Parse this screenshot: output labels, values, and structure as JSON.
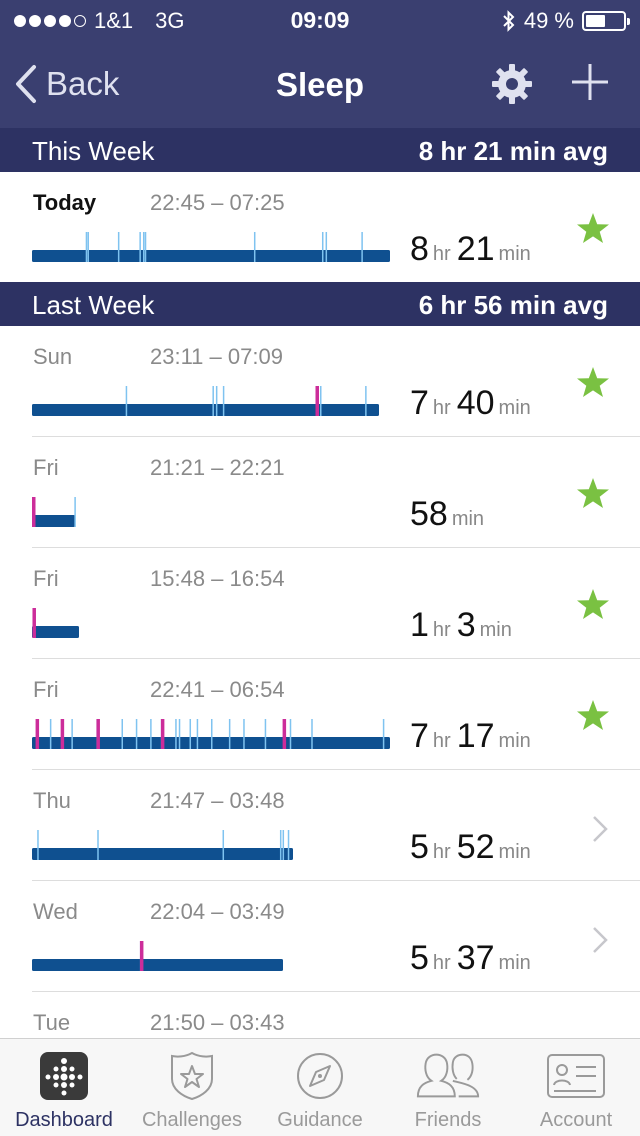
{
  "status": {
    "carrier": "1&1",
    "network": "3G",
    "time": "09:09",
    "battery": "49 %",
    "battery_level": 0.49,
    "signal_bars": 4
  },
  "nav": {
    "back_label": "Back",
    "title": "Sleep"
  },
  "sections": [
    {
      "label": "This Week",
      "avg": "8 hr 21 min avg"
    },
    {
      "label": "Last Week",
      "avg": "6 hr 56 min avg"
    }
  ],
  "entries": [
    {
      "day": "Today",
      "range": "22:45 – 07:25",
      "hr": "8",
      "hr_unit": "hr",
      "min": "21",
      "min_unit": "min",
      "status": "star",
      "bar_fraction": 1.0,
      "highlight_day": true
    },
    {
      "day": "Sun",
      "range": "23:11 – 07:09",
      "hr": "7",
      "hr_unit": "hr",
      "min": "40",
      "min_unit": "min",
      "status": "star",
      "bar_fraction": 0.97
    },
    {
      "day": "Fri",
      "range": "21:21 – 22:21",
      "hr": "",
      "hr_unit": "",
      "min": "58",
      "min_unit": "min",
      "status": "star",
      "bar_fraction": 0.12
    },
    {
      "day": "Fri",
      "range": "15:48 – 16:54",
      "hr": "1",
      "hr_unit": "hr",
      "min": "3",
      "min_unit": "min",
      "status": "star",
      "bar_fraction": 0.13
    },
    {
      "day": "Fri",
      "range": "22:41 – 06:54",
      "hr": "7",
      "hr_unit": "hr",
      "min": "17",
      "min_unit": "min",
      "status": "star",
      "bar_fraction": 1.0
    },
    {
      "day": "Thu",
      "range": "21:47 – 03:48",
      "hr": "5",
      "hr_unit": "hr",
      "min": "52",
      "min_unit": "min",
      "status": "chevron",
      "bar_fraction": 0.73
    },
    {
      "day": "Wed",
      "range": "22:04 – 03:49",
      "hr": "5",
      "hr_unit": "hr",
      "min": "37",
      "min_unit": "min",
      "status": "chevron",
      "bar_fraction": 0.7
    },
    {
      "day": "Tue",
      "range": "21:50 – 03:43",
      "hr": "",
      "hr_unit": "",
      "min": "",
      "min_unit": "",
      "status": "chevron",
      "bar_fraction": 0
    }
  ],
  "tabs": [
    {
      "label": "Dashboard",
      "icon": "dashboard-icon",
      "active": true
    },
    {
      "label": "Challenges",
      "icon": "challenges-icon",
      "active": false
    },
    {
      "label": "Guidance",
      "icon": "compass-icon",
      "active": false
    },
    {
      "label": "Friends",
      "icon": "friends-icon",
      "active": false
    },
    {
      "label": "Account",
      "icon": "account-card-icon",
      "active": false
    }
  ],
  "colors": {
    "header": "#3a3f70",
    "section": "#2d3263",
    "sleep_bar": "#0f5090",
    "awake_tick": "#7fc3f0",
    "restless_tick": "#cc2d9a",
    "star": "#7ac142"
  }
}
